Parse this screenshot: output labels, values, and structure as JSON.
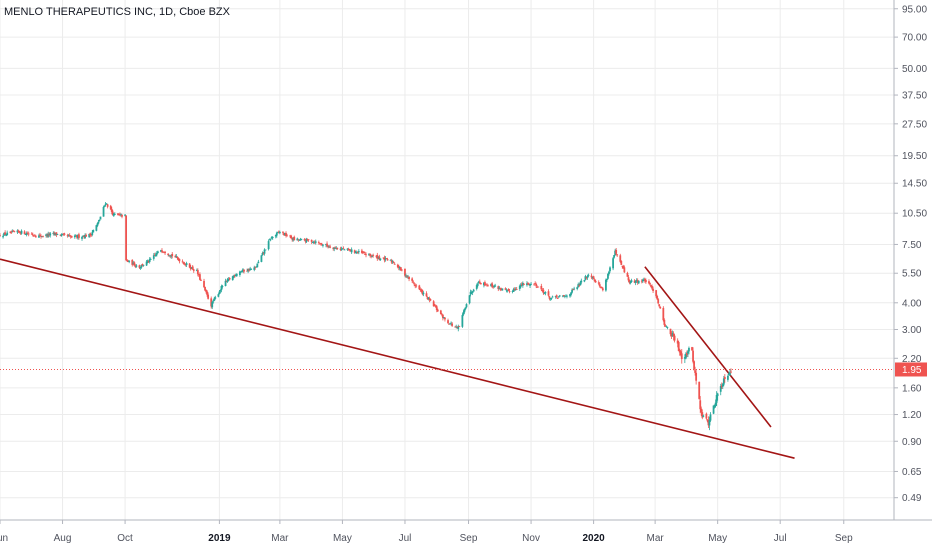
{
  "header": {
    "title": "MENLO THERAPEUTICS INC, 1D, Cboe BZX"
  },
  "colors": {
    "up": "#26a69a",
    "down": "#ef5350",
    "trendline": "#a31515",
    "last_price": "#ef5350",
    "grid": "#ececec",
    "axis": "#b2b5be"
  },
  "chart_data": {
    "type": "candlestick",
    "y_scale": "log",
    "ylim": [
      0.42,
      100
    ],
    "y_ticks": [
      "95.00",
      "70.00",
      "50.00",
      "37.50",
      "27.50",
      "19.50",
      "14.50",
      "10.50",
      "7.50",
      "5.50",
      "4.00",
      "3.00",
      "2.20",
      "1.60",
      "1.20",
      "0.90",
      "0.65",
      "0.49"
    ],
    "x_ticks": [
      {
        "label": "Jun",
        "date": "2018-06-01",
        "bold": false
      },
      {
        "label": "Aug",
        "date": "2018-08-01",
        "bold": false
      },
      {
        "label": "Oct",
        "date": "2018-10-01",
        "bold": false
      },
      {
        "label": "2019",
        "date": "2019-01-01",
        "bold": true
      },
      {
        "label": "Mar",
        "date": "2019-03-01",
        "bold": false
      },
      {
        "label": "May",
        "date": "2019-05-01",
        "bold": false
      },
      {
        "label": "Jul",
        "date": "2019-07-01",
        "bold": false
      },
      {
        "label": "Sep",
        "date": "2019-09-01",
        "bold": false
      },
      {
        "label": "Nov",
        "date": "2019-11-01",
        "bold": false
      },
      {
        "label": "2020",
        "date": "2020-01-01",
        "bold": true
      },
      {
        "label": "Mar",
        "date": "2020-03-01",
        "bold": false
      },
      {
        "label": "May",
        "date": "2020-05-01",
        "bold": false
      },
      {
        "label": "Jul",
        "date": "2020-07-01",
        "bold": false
      },
      {
        "label": "Sep",
        "date": "2020-09-01",
        "bold": false
      }
    ],
    "x_range": [
      "2018-06-01",
      "2020-10-20"
    ],
    "last_price": {
      "value": 1.95,
      "label": "1.95"
    },
    "price_path": [
      [
        "2018-06-01",
        8.3
      ],
      [
        "2018-06-20",
        8.6
      ],
      [
        "2018-07-10",
        8.2
      ],
      [
        "2018-07-25",
        8.4
      ],
      [
        "2018-08-10",
        8.1
      ],
      [
        "2018-08-28",
        8.3
      ],
      [
        "2018-09-05",
        9.5
      ],
      [
        "2018-09-12",
        11.8
      ],
      [
        "2018-09-20",
        10.3
      ],
      [
        "2018-10-01",
        10.2
      ],
      [
        "2018-10-02",
        6.3
      ],
      [
        "2018-10-15",
        5.9
      ],
      [
        "2018-10-25",
        6.3
      ],
      [
        "2018-11-05",
        7.1
      ],
      [
        "2018-11-20",
        6.5
      ],
      [
        "2018-12-10",
        5.6
      ],
      [
        "2018-12-24",
        3.9
      ],
      [
        "2019-01-05",
        4.9
      ],
      [
        "2019-01-20",
        5.6
      ],
      [
        "2019-02-05",
        5.8
      ],
      [
        "2019-02-20",
        8.0
      ],
      [
        "2019-03-01",
        8.6
      ],
      [
        "2019-03-15",
        7.9
      ],
      [
        "2019-04-01",
        7.8
      ],
      [
        "2019-04-20",
        7.3
      ],
      [
        "2019-05-10",
        7.0
      ],
      [
        "2019-06-01",
        6.6
      ],
      [
        "2019-06-20",
        6.2
      ],
      [
        "2019-07-10",
        4.9
      ],
      [
        "2019-07-25",
        4.1
      ],
      [
        "2019-08-10",
        3.3
      ],
      [
        "2019-08-22",
        3.0
      ],
      [
        "2019-09-01",
        4.3
      ],
      [
        "2019-09-10",
        5.0
      ],
      [
        "2019-09-25",
        4.8
      ],
      [
        "2019-10-10",
        4.5
      ],
      [
        "2019-10-25",
        4.9
      ],
      [
        "2019-11-05",
        4.9
      ],
      [
        "2019-11-20",
        4.2
      ],
      [
        "2019-12-05",
        4.3
      ],
      [
        "2019-12-15",
        4.7
      ],
      [
        "2019-12-28",
        5.5
      ],
      [
        "2020-01-10",
        4.6
      ],
      [
        "2020-01-22",
        6.9
      ],
      [
        "2020-02-05",
        5.0
      ],
      [
        "2020-02-20",
        5.1
      ],
      [
        "2020-03-01",
        4.5
      ],
      [
        "2020-03-10",
        3.2
      ],
      [
        "2020-03-20",
        2.7
      ],
      [
        "2020-03-28",
        2.2
      ],
      [
        "2020-04-05",
        2.5
      ],
      [
        "2020-04-15",
        1.2
      ],
      [
        "2020-04-22",
        1.1
      ],
      [
        "2020-05-01",
        1.5
      ],
      [
        "2020-05-08",
        1.8
      ],
      [
        "2020-05-14",
        1.95
      ]
    ],
    "trendlines": [
      {
        "start": [
          "2018-06-01",
          6.4
        ],
        "end": [
          "2020-07-15",
          0.75
        ]
      },
      {
        "start": [
          "2020-02-20",
          5.9
        ],
        "end": [
          "2020-06-22",
          1.05
        ]
      }
    ]
  }
}
